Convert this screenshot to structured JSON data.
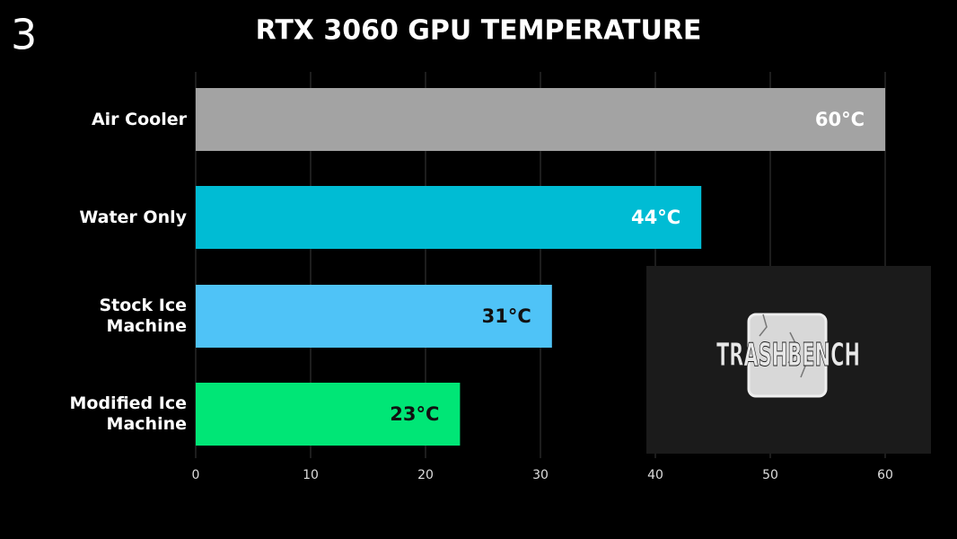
{
  "badge": "3",
  "logo": {
    "text": "TRASHBENCH"
  },
  "chart_data": {
    "type": "barh",
    "title": "RTX 3060 GPU TEMPERATURE",
    "categories": [
      "Air Cooler",
      "Water Only",
      "Stock Ice Machine",
      "Modified Ice Machine"
    ],
    "values": [
      60,
      44,
      31,
      23
    ],
    "value_labels": [
      "60°C",
      "44°C",
      "31°C",
      "23°C"
    ],
    "colors": [
      "#a3a3a3",
      "#00bcd4",
      "#4fc3f7",
      "#00e676"
    ],
    "label_colors": [
      "#ffffff",
      "#ffffff",
      "#111111",
      "#111111"
    ],
    "xlim": [
      0,
      60
    ],
    "xticks": [
      0,
      10,
      20,
      30,
      40,
      50,
      60
    ],
    "grid": true
  }
}
